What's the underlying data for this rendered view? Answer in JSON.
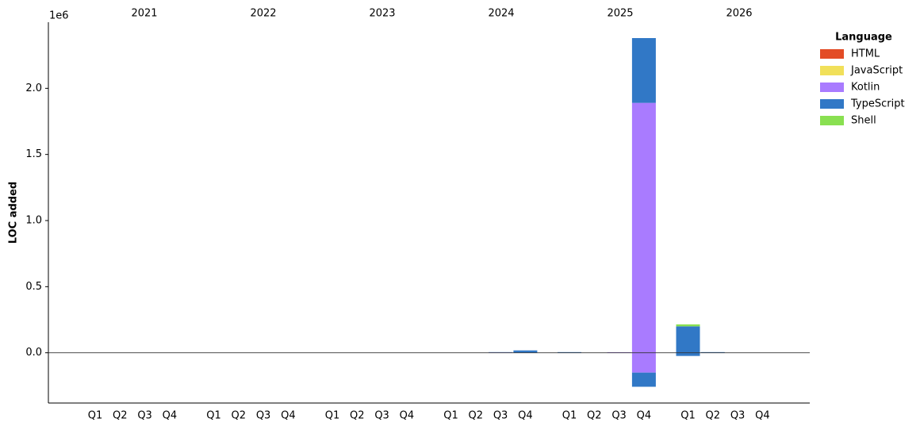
{
  "chart_data": {
    "type": "stacked_bar",
    "ylabel": "LOC added",
    "y_offset_label": "1e6",
    "years": [
      "2021",
      "2022",
      "2023",
      "2024",
      "2025",
      "2026"
    ],
    "categories": [
      "Q1",
      "Q2",
      "Q3",
      "Q4",
      "Q1",
      "Q2",
      "Q3",
      "Q4",
      "Q1",
      "Q2",
      "Q3",
      "Q4",
      "Q1",
      "Q2",
      "Q3",
      "Q4",
      "Q1",
      "Q2",
      "Q3",
      "Q4",
      "Q1",
      "Q2",
      "Q3",
      "Q4"
    ],
    "legend_title": "Language",
    "series": [
      {
        "name": "HTML",
        "color": "#e34c26",
        "values": [
          0,
          0,
          0,
          0,
          0,
          0,
          0,
          0,
          0,
          0,
          0,
          0,
          0,
          0,
          0,
          0,
          0,
          0,
          0,
          0,
          0,
          0,
          0,
          0
        ],
        "negative_values": [
          0,
          0,
          0,
          0,
          0,
          0,
          0,
          0,
          0,
          0,
          0,
          0,
          0,
          0,
          0,
          0,
          0,
          0,
          0,
          0,
          0,
          0,
          0,
          0
        ]
      },
      {
        "name": "JavaScript",
        "color": "#f1e05a",
        "values": [
          0,
          0,
          0,
          0,
          0,
          0,
          0,
          0,
          0,
          0,
          0,
          0,
          0,
          0,
          0,
          0,
          0,
          0,
          0,
          0,
          0,
          0,
          0,
          0
        ],
        "negative_values": [
          0,
          0,
          0,
          0,
          0,
          0,
          0,
          0,
          0,
          0,
          0,
          0,
          0,
          0,
          0,
          0,
          0,
          0,
          0,
          0,
          0,
          0,
          0,
          0
        ]
      },
      {
        "name": "Kotlin",
        "color": "#a97bff",
        "values": [
          0,
          0,
          0,
          0,
          0,
          0,
          0,
          0,
          0,
          0,
          0,
          0,
          0,
          0,
          3000,
          0,
          0,
          0,
          4000,
          1890000,
          0,
          0,
          0,
          0
        ],
        "negative_values": [
          0,
          0,
          0,
          0,
          0,
          0,
          0,
          0,
          0,
          0,
          0,
          0,
          0,
          0,
          0,
          0,
          0,
          0,
          0,
          -150000,
          0,
          0,
          0,
          0
        ]
      },
      {
        "name": "TypeScript",
        "color": "#3178c6",
        "values": [
          0,
          0,
          0,
          0,
          0,
          0,
          0,
          0,
          0,
          0,
          0,
          0,
          0,
          0,
          2000,
          18000,
          5000,
          0,
          0,
          490000,
          200000,
          5000,
          0,
          0
        ],
        "negative_values": [
          0,
          0,
          0,
          0,
          0,
          0,
          0,
          0,
          0,
          0,
          0,
          0,
          0,
          0,
          0,
          0,
          0,
          0,
          0,
          -107000,
          -24000,
          0,
          0,
          0
        ]
      },
      {
        "name": "Shell",
        "color": "#89e051",
        "values": [
          0,
          0,
          0,
          0,
          0,
          0,
          0,
          0,
          0,
          0,
          0,
          0,
          0,
          0,
          0,
          0,
          0,
          0,
          0,
          0,
          15000,
          0,
          0,
          0
        ],
        "negative_values": [
          0,
          0,
          0,
          0,
          0,
          0,
          0,
          0,
          0,
          0,
          0,
          0,
          0,
          0,
          0,
          0,
          0,
          0,
          0,
          0,
          0,
          0,
          0,
          0
        ]
      }
    ],
    "ylim": [
      -380000,
      2500000
    ],
    "yticks": [
      {
        "value": 0,
        "label": "0.0"
      },
      {
        "value": 500000,
        "label": "0.5"
      },
      {
        "value": 1000000,
        "label": "1.0"
      },
      {
        "value": 1500000,
        "label": "1.5"
      },
      {
        "value": 2000000,
        "label": "2.0"
      }
    ],
    "zero_line": true,
    "legend": "upper right"
  }
}
